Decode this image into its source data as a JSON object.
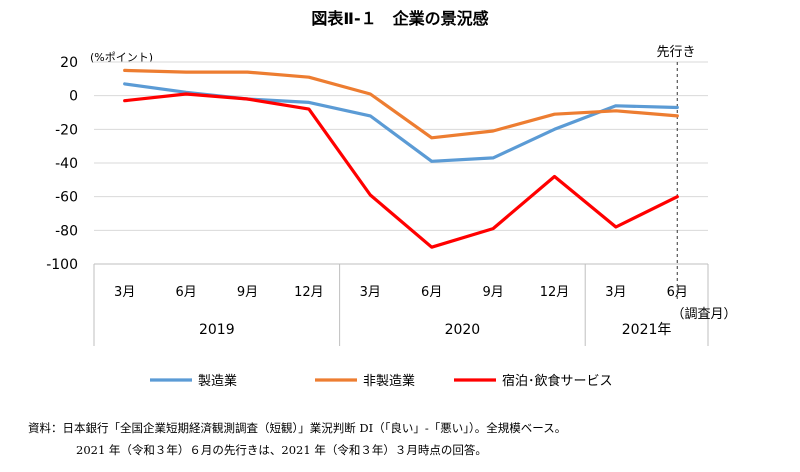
{
  "title": "図表Ⅱ-１　企業の景況感",
  "unit_label": "(%ポイント)",
  "forecast_label": "先行き",
  "survey_month_label": "（調査月）",
  "chart_data": {
    "type": "line",
    "categories": [
      "3月",
      "6月",
      "9月",
      "12月",
      "3月",
      "6月",
      "9月",
      "12月",
      "3月",
      "6月"
    ],
    "year_groups": [
      {
        "label": "2019",
        "span": 4
      },
      {
        "label": "2020",
        "span": 4
      },
      {
        "label": "2021年",
        "span": 2
      }
    ],
    "ylim": [
      -100,
      20
    ],
    "yticks": [
      20,
      0,
      -20,
      -40,
      -60,
      -80,
      -100
    ],
    "grid": true,
    "legend_position": "bottom",
    "series": [
      {
        "name": "製造業",
        "color": "#5b9bd5",
        "values": [
          7,
          2,
          -2,
          -4,
          -12,
          -39,
          -37,
          -20,
          -6,
          -7
        ]
      },
      {
        "name": "非製造業",
        "color": "#ed7d31",
        "values": [
          15,
          14,
          14,
          11,
          1,
          -25,
          -21,
          -11,
          -9,
          -12
        ]
      },
      {
        "name": "宿泊･飲食サービス",
        "color": "#ff0000",
        "values": [
          -3,
          1,
          -2,
          -8,
          -59,
          -90,
          -79,
          -48,
          -78,
          -60
        ]
      }
    ]
  },
  "notes": {
    "line1": "資料：日本銀行「全国企業短期経済観測調査（短観）」業況判断 DI（「良い」-「悪い」）。全規模ベース。",
    "line2": "2021 年（令和３年）６月の先行きは、2021 年（令和３年）３月時点の回答。"
  }
}
